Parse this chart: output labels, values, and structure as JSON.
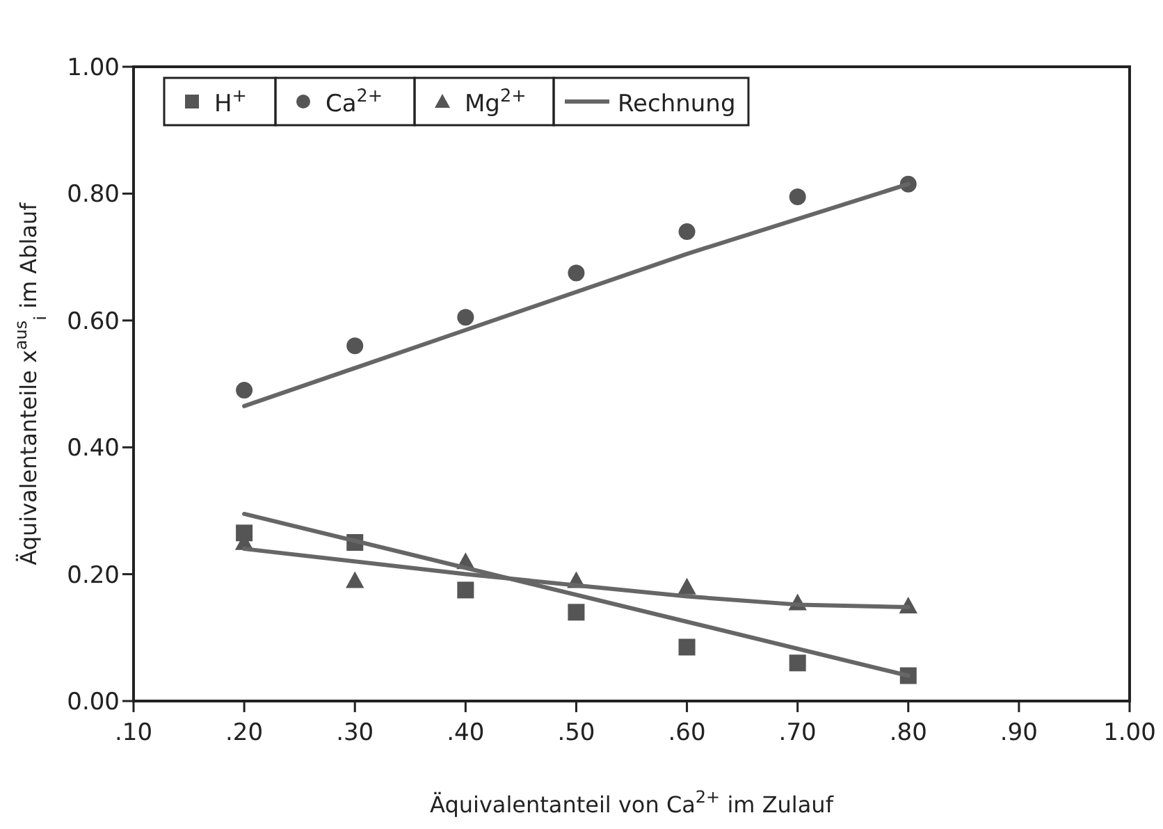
{
  "chart_data": {
    "type": "scatter",
    "xlabel": "Äquivalentanteil von Ca$^{2+}$ im Zulauf",
    "ylabel": "Äquivalentanteile x$^{aus}$$_{i}$ im Ablauf",
    "xlim": [
      0.1,
      1.0
    ],
    "ylim": [
      0,
      1.0
    ],
    "xticks": [
      {
        "value": 0.1,
        "label": ".10"
      },
      {
        "value": 0.2,
        "label": ".20"
      },
      {
        "value": 0.3,
        "label": ".30"
      },
      {
        "value": 0.4,
        "label": ".40"
      },
      {
        "value": 0.5,
        "label": ".50"
      },
      {
        "value": 0.6,
        "label": ".60"
      },
      {
        "value": 0.7,
        "label": ".70"
      },
      {
        "value": 0.8,
        "label": ".80"
      },
      {
        "value": 0.9,
        "label": ".90"
      },
      {
        "value": 1.0,
        "label": "1.00"
      }
    ],
    "yticks": [
      {
        "value": 0,
        "label": "0.00"
      },
      {
        "value": 0.2,
        "label": "0.20"
      },
      {
        "value": 0.4,
        "label": "0.40"
      },
      {
        "value": 0.6,
        "label": "0.60"
      },
      {
        "value": 0.8,
        "label": "0.80"
      },
      {
        "value": 1.0,
        "label": "1.00"
      }
    ],
    "grid": false,
    "legend": "top left",
    "series": [
      {
        "name": "H$^{+}$",
        "marker": "square",
        "color": "#555555",
        "x": [
          0.2,
          0.3,
          0.4,
          0.5,
          0.6,
          0.7,
          0.8
        ],
        "values": [
          0.265,
          0.25,
          0.175,
          0.14,
          0.085,
          0.06,
          0.04
        ]
      },
      {
        "name": "Ca$^{2+}$",
        "marker": "circle",
        "color": "#555555",
        "x": [
          0.2,
          0.3,
          0.4,
          0.5,
          0.6,
          0.7,
          0.8
        ],
        "values": [
          0.49,
          0.56,
          0.605,
          0.675,
          0.74,
          0.795,
          0.815
        ]
      },
      {
        "name": "Mg$^{2+}$",
        "marker": "triangle",
        "color": "#555555",
        "x": [
          0.2,
          0.3,
          0.4,
          0.5,
          0.6,
          0.7,
          0.8
        ],
        "values": [
          0.25,
          0.19,
          0.22,
          0.19,
          0.18,
          0.155,
          0.15
        ]
      },
      {
        "name": "Rechnung",
        "type": "line",
        "marker": "none",
        "line_style": "solid",
        "color": "#666666",
        "x": [
          0.2,
          0.4,
          0.6,
          0.8
        ],
        "values": [
          0.465,
          0.585,
          0.705,
          0.815
        ]
      },
      {
        "type": "line",
        "marker": "none",
        "line_style": "solid",
        "color": "#666666",
        "x": [
          0.2,
          0.4,
          0.6,
          0.8
        ],
        "values": [
          0.295,
          0.21,
          0.125,
          0.04
        ]
      },
      {
        "type": "line",
        "marker": "none",
        "line_style": "solid",
        "color": "#666666",
        "x": [
          0.2,
          0.4,
          0.6,
          0.7,
          0.8
        ],
        "values": [
          0.24,
          0.2,
          0.165,
          0.152,
          0.148
        ]
      }
    ]
  }
}
